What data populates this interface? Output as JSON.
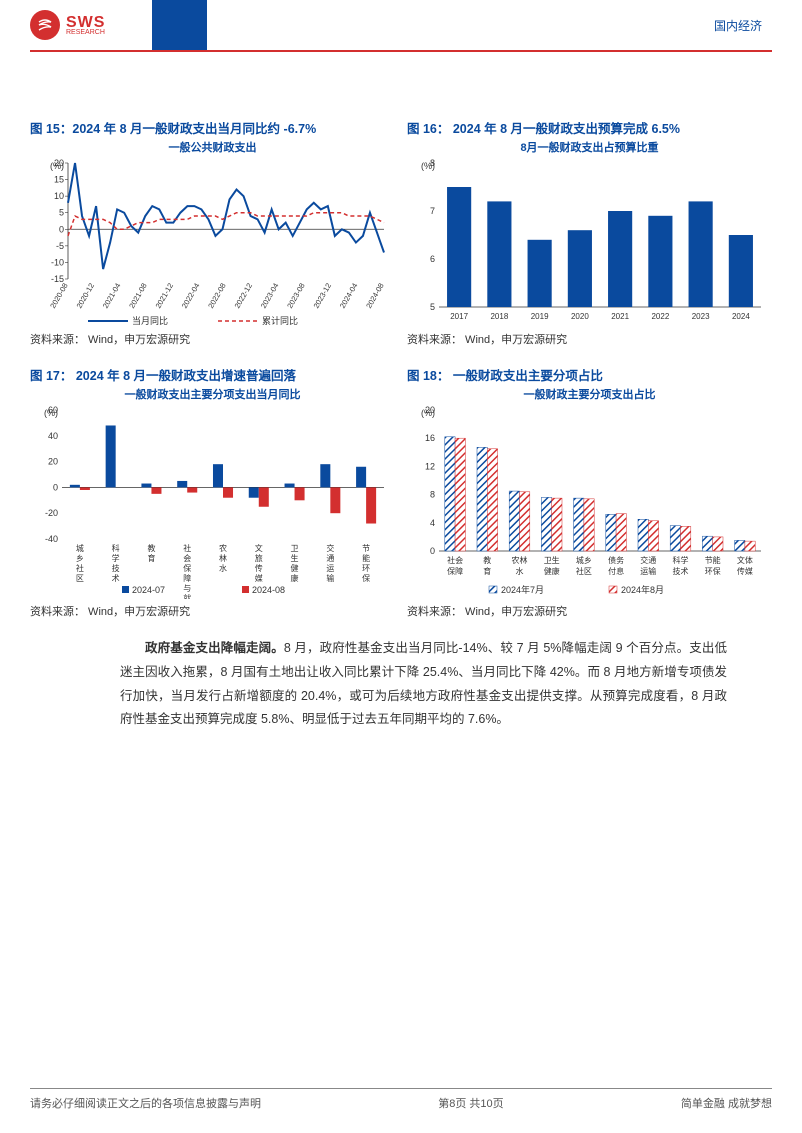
{
  "header": {
    "logo_main": "SWS",
    "logo_sub": "RESEARCH",
    "right_label": "国内经济"
  },
  "chart15": {
    "title": "图 15：2024 年 8 月一般财政支出当月同比约 -6.7%",
    "subtitle": "一般公共财政支出",
    "type": "line",
    "ylabel": "(%)",
    "ylim": [
      -15,
      20
    ],
    "ytick_step": 5,
    "xticks": [
      "2020-08",
      "2020-12",
      "2021-04",
      "2021-08",
      "2021-12",
      "2022-04",
      "2022-08",
      "2022-12",
      "2023-04",
      "2023-08",
      "2023-12",
      "2024-04",
      "2024-08"
    ],
    "series": [
      {
        "name": "当月同比",
        "color": "#0a4a9e",
        "dash": "none",
        "width": 2,
        "values": [
          8,
          20,
          4,
          -2,
          7,
          -12,
          -4,
          6,
          5,
          1,
          -1,
          4,
          7,
          6,
          2,
          2,
          5,
          7,
          7,
          6,
          3,
          -2,
          0,
          9,
          12,
          10,
          4,
          3,
          -1,
          6,
          0,
          2,
          -2,
          2,
          6,
          8,
          6,
          7,
          -2,
          0,
          -1,
          -4,
          -2,
          5,
          -1,
          -7
        ]
      },
      {
        "name": "累计同比",
        "color": "#d32f2f",
        "dash": "4,3",
        "width": 1.5,
        "values": [
          -2,
          4,
          3,
          3,
          3,
          3,
          2,
          0,
          0,
          1,
          2,
          2,
          2,
          3,
          3,
          3,
          3,
          3,
          4,
          4,
          4,
          4,
          3,
          4,
          5,
          5,
          5,
          4,
          4,
          4,
          4,
          4,
          4,
          4,
          4,
          5,
          5,
          5,
          5,
          5,
          4,
          4,
          4,
          4,
          3,
          2
        ]
      }
    ],
    "legend1": "当月同比",
    "legend2": "累计同比",
    "source": "资料来源： Wind，申万宏源研究"
  },
  "chart16": {
    "title": "图 16： 2024 年 8 月一般财政支出预算完成 6.5%",
    "subtitle": "8月一般财政支出占预算比重",
    "type": "bar",
    "ylabel": "(%)",
    "ylim": [
      5,
      8
    ],
    "ytick_step": 1,
    "categories": [
      "2017",
      "2018",
      "2019",
      "2020",
      "2021",
      "2022",
      "2023",
      "2024"
    ],
    "values": [
      7.5,
      7.2,
      6.4,
      6.6,
      7.0,
      6.9,
      7.2,
      6.5
    ],
    "bar_color": "#0a4a9e",
    "source": "资料来源： Wind，申万宏源研究"
  },
  "chart17": {
    "title": "图 17： 2024 年 8 月一般财政支出增速普遍回落",
    "subtitle": "一般财政支出主要分项支出当月同比",
    "type": "grouped-bar",
    "ylabel": "(%)",
    "ylim": [
      -40,
      60
    ],
    "ytick_step": 20,
    "categories": [
      "城乡社区",
      "科学技术",
      "教育",
      "社会保障与就业",
      "农林水",
      "文旅传媒",
      "卫生健康",
      "交通运输",
      "节能环保"
    ],
    "series": [
      {
        "name": "2024-07",
        "color": "#0a4a9e",
        "values": [
          2,
          48,
          3,
          5,
          18,
          -8,
          3,
          18,
          16
        ]
      },
      {
        "name": "2024-08",
        "color": "#d32f2f",
        "values": [
          -2,
          0,
          -5,
          -4,
          -8,
          -15,
          -10,
          -20,
          -28
        ]
      }
    ],
    "legend1": "2024-07",
    "legend2": "2024-08",
    "source": "资料来源： Wind，申万宏源研究"
  },
  "chart18": {
    "title": "图 18： 一般财政支出主要分项占比",
    "subtitle": "一般财政主要分项支出占比",
    "type": "grouped-bar-hatch",
    "ylabel": "(%)",
    "ylim": [
      0,
      20
    ],
    "ytick_step": 4,
    "categories": [
      "社会保障",
      "教育",
      "农林水",
      "卫生健康",
      "城乡社区",
      "债务付息",
      "交通运输",
      "科学技术",
      "节能环保",
      "文体传媒"
    ],
    "series": [
      {
        "name": "2024年7月",
        "color": "#0a4a9e",
        "values": [
          16.2,
          14.7,
          8.5,
          7.6,
          7.5,
          5.2,
          4.5,
          3.6,
          2.1,
          1.5
        ]
      },
      {
        "name": "2024年8月",
        "color": "#d32f2f",
        "values": [
          16.0,
          14.5,
          8.4,
          7.5,
          7.4,
          5.3,
          4.3,
          3.5,
          2.0,
          1.4
        ]
      }
    ],
    "legend1": "2024年7月",
    "legend2": "2024年8月",
    "source": "资料来源： Wind，申万宏源研究"
  },
  "body": {
    "lead": "政府基金支出降幅走阔。",
    "text": "8 月，政府性基金支出当月同比-14%、较 7 月 5%降幅走阔 9 个百分点。支出低迷主因收入拖累，8 月国有土地出让收入同比累计下降 25.4%、当月同比下降 42%。而 8 月地方新增专项债发行加快，当月发行占新增额度的 20.4%，或可为后续地方政府性基金支出提供支撑。从预算完成度看，8 月政府性基金支出预算完成度 5.8%、明显低于过去五年同期平均的 7.6%。"
  },
  "footer": {
    "left": "请务必仔细阅读正文之后的各项信息披露与声明",
    "center": "第8页  共10页",
    "right": "简单金融 成就梦想"
  }
}
